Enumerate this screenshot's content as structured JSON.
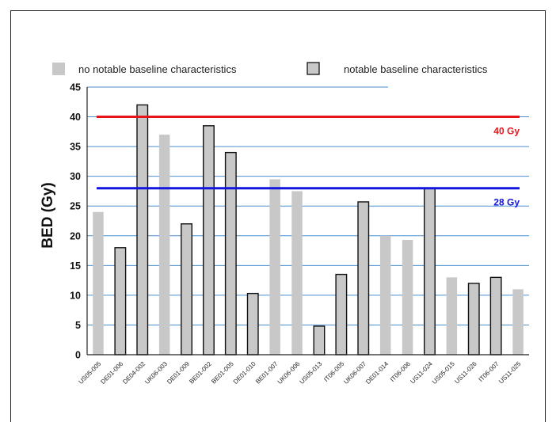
{
  "chart_data": {
    "type": "bar",
    "ylabel": "BED (Gy)",
    "xlabel": "",
    "ylim": [
      0,
      45
    ],
    "yticks": [
      0,
      5,
      10,
      15,
      20,
      25,
      30,
      35,
      40,
      45
    ],
    "grid": true,
    "legend": {
      "placement": "top",
      "items": [
        {
          "label": "no notable baseline characteristics",
          "color": "#c8c8c8",
          "outline": false
        },
        {
          "label": "notable baseline characteristics",
          "color": "#c8c8c8",
          "outline": true
        }
      ]
    },
    "categories": [
      "US05-005",
      "DE01-006",
      "DE04-002",
      "UK06-003",
      "DE01-009",
      "BE01-002",
      "BE01-005",
      "DE01-010",
      "BE01-007",
      "UK06-006",
      "US05-013",
      "IT06-005",
      "UK06-007",
      "DE01-014",
      "IT06-006",
      "US11-024",
      "US05-015",
      "US11-026",
      "IT06-007",
      "US11-025"
    ],
    "values": [
      24,
      18,
      42,
      37,
      22,
      38.5,
      34,
      10.3,
      29.5,
      27.5,
      4.8,
      13.5,
      25.7,
      20,
      19.3,
      28,
      13,
      12,
      13,
      11
    ],
    "notable": [
      false,
      true,
      true,
      false,
      true,
      true,
      true,
      true,
      false,
      false,
      true,
      true,
      true,
      false,
      false,
      true,
      false,
      true,
      true,
      false
    ],
    "reference_lines": [
      {
        "value": 40,
        "label": "40 Gy",
        "color": "#e8141b"
      },
      {
        "value": 28,
        "label": "28 Gy",
        "color": "#1414e0"
      }
    ],
    "colors": {
      "bar": "#c8c8c8",
      "outline": "#111111",
      "grid": "#4a8fd0",
      "axis": "#222222"
    }
  }
}
